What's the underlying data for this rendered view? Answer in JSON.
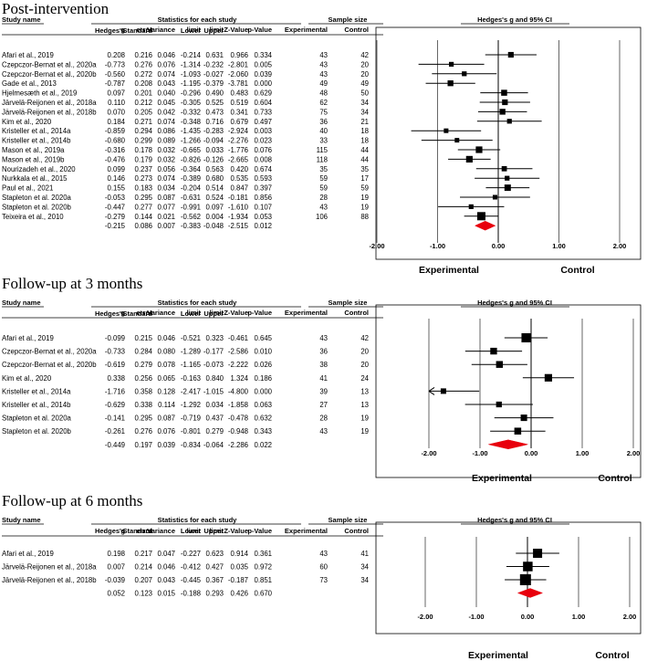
{
  "headers": {
    "study_name": "Study name",
    "stats_group": "Statistics for each study",
    "sample_group": "Sample size",
    "plot_title": "Hedges's g and 95% CI",
    "hedges_1": "Hedges's",
    "hedges_2": "g",
    "se_1": "Standard",
    "se_2": "error",
    "variance": "Variance",
    "lower_1": "Lower",
    "lower_2": "limit",
    "upper_1": "Upper",
    "upper_2": "limit",
    "z": "Z-Value",
    "p": "p-Value",
    "experimental": "Experimental",
    "control": "Control"
  },
  "chart_data": [
    {
      "type": "forest",
      "title": "Post-intervention",
      "xlim": [
        -2,
        2
      ],
      "ticks": [
        "-2.00",
        "-1.00",
        "0.00",
        "1.00",
        "2.00"
      ],
      "tick_values": [
        -2,
        -1,
        0,
        1,
        2
      ],
      "xlabel_left": "Experimental",
      "xlabel_right": "Control",
      "studies": [
        {
          "name": "Afari et al., 2019",
          "g": "0.208",
          "se": "0.216",
          "var": "0.046",
          "lower": "-0.214",
          "upper": "0.631",
          "z": "0.966",
          "p": "0.334",
          "exp": "43",
          "ctrl": "42"
        },
        {
          "name": "Czepczor-Bernat et al., 2020a",
          "g": "-0.773",
          "se": "0.276",
          "var": "0.076",
          "lower": "-1.314",
          "upper": "-0.232",
          "z": "-2.801",
          "p": "0.005",
          "exp": "43",
          "ctrl": "20"
        },
        {
          "name": "Czepczor-Bernat et al., 2020b",
          "g": "-0.560",
          "se": "0.272",
          "var": "0.074",
          "lower": "-1.093",
          "upper": "-0.027",
          "z": "-2.060",
          "p": "0.039",
          "exp": "43",
          "ctrl": "20"
        },
        {
          "name": "Gade et al., 2013",
          "g": "-0.787",
          "se": "0.208",
          "var": "0.043",
          "lower": "-1.195",
          "upper": "-0.379",
          "z": "-3.781",
          "p": "0.000",
          "exp": "49",
          "ctrl": "49"
        },
        {
          "name": "Hjelmesæth et al., 2019",
          "g": "0.097",
          "se": "0.201",
          "var": "0.040",
          "lower": "-0.296",
          "upper": "0.490",
          "z": "0.483",
          "p": "0.629",
          "exp": "48",
          "ctrl": "50"
        },
        {
          "name": "Järvelä-Reijonen et al., 2018a",
          "g": "0.110",
          "se": "0.212",
          "var": "0.045",
          "lower": "-0.305",
          "upper": "0.525",
          "z": "0.519",
          "p": "0.604",
          "exp": "62",
          "ctrl": "34"
        },
        {
          "name": "Järvelä-Reijonen et al., 2018b",
          "g": "0.070",
          "se": "0.205",
          "var": "0.042",
          "lower": "-0.332",
          "upper": "0.473",
          "z": "0.341",
          "p": "0.733",
          "exp": "75",
          "ctrl": "34"
        },
        {
          "name": "Kim et al., 2020",
          "g": "0.184",
          "se": "0.271",
          "var": "0.074",
          "lower": "-0.348",
          "upper": "0.716",
          "z": "0.679",
          "p": "0.497",
          "exp": "36",
          "ctrl": "21"
        },
        {
          "name": "Kristeller et al., 2014a",
          "g": "-0.859",
          "se": "0.294",
          "var": "0.086",
          "lower": "-1.435",
          "upper": "-0.283",
          "z": "-2.924",
          "p": "0.003",
          "exp": "40",
          "ctrl": "18"
        },
        {
          "name": "Kristeller et al., 2014b",
          "g": "-0.680",
          "se": "0.299",
          "var": "0.089",
          "lower": "-1.266",
          "upper": "-0.094",
          "z": "-2.276",
          "p": "0.023",
          "exp": "33",
          "ctrl": "18"
        },
        {
          "name": "Mason et al., 2019a",
          "g": "-0.316",
          "se": "0.178",
          "var": "0.032",
          "lower": "-0.665",
          "upper": "0.033",
          "z": "-1.776",
          "p": "0.076",
          "exp": "115",
          "ctrl": "44"
        },
        {
          "name": "Mason et al., 2019b",
          "g": "-0.476",
          "se": "0.179",
          "var": "0.032",
          "lower": "-0.826",
          "upper": "-0.126",
          "z": "-2.665",
          "p": "0.008",
          "exp": "118",
          "ctrl": "44"
        },
        {
          "name": "Nourizadeh et al., 2020",
          "g": "0.099",
          "se": "0.237",
          "var": "0.056",
          "lower": "-0.364",
          "upper": "0.563",
          "z": "0.420",
          "p": "0.674",
          "exp": "35",
          "ctrl": "35"
        },
        {
          "name": "Nurkkala et al., 2015",
          "g": "0.146",
          "se": "0.273",
          "var": "0.074",
          "lower": "-0.389",
          "upper": "0.680",
          "z": "0.535",
          "p": "0.593",
          "exp": "59",
          "ctrl": "17"
        },
        {
          "name": "Paul et al., 2021",
          "g": "0.155",
          "se": "0.183",
          "var": "0.034",
          "lower": "-0.204",
          "upper": "0.514",
          "z": "0.847",
          "p": "0.397",
          "exp": "59",
          "ctrl": "59"
        },
        {
          "name": "Stapleton et al. 2020a",
          "g": "-0.053",
          "se": "0.295",
          "var": "0.087",
          "lower": "-0.631",
          "upper": "0.524",
          "z": "-0.181",
          "p": "0.856",
          "exp": "28",
          "ctrl": "19"
        },
        {
          "name": "Stapleton et al. 2020b",
          "g": "-0.447",
          "se": "0.277",
          "var": "0.077",
          "lower": "-0.991",
          "upper": "0.097",
          "z": "-1.610",
          "p": "0.107",
          "exp": "43",
          "ctrl": "19"
        },
        {
          "name": "Teixeira et al., 2010",
          "g": "-0.279",
          "se": "0.144",
          "var": "0.021",
          "lower": "-0.562",
          "upper": "0.004",
          "z": "-1.934",
          "p": "0.053",
          "exp": "106",
          "ctrl": "88"
        }
      ],
      "summary": {
        "g": "-0.215",
        "se": "0.086",
        "var": "0.007",
        "lower": "-0.383",
        "upper": "-0.048",
        "z": "-2.515",
        "p": "0.012"
      }
    },
    {
      "type": "forest",
      "title": "Follow-up at 3 months",
      "xlim": [
        -2,
        2
      ],
      "ticks": [
        "-2.00",
        "-1.00",
        "0.00",
        "1.00",
        "2.00"
      ],
      "tick_values": [
        -2,
        -1,
        0,
        1,
        2
      ],
      "xlabel_left": "Experimental",
      "xlabel_right": "Control",
      "studies": [
        {
          "name": "Afari et al., 2019",
          "g": "-0.099",
          "se": "0.215",
          "var": "0.046",
          "lower": "-0.521",
          "upper": "0.323",
          "z": "-0.461",
          "p": "0.645",
          "exp": "43",
          "ctrl": "42"
        },
        {
          "name": "Czepczor-Bernat et al., 2020a",
          "g": "-0.733",
          "se": "0.284",
          "var": "0.080",
          "lower": "-1.289",
          "upper": "-0.177",
          "z": "-2.586",
          "p": "0.010",
          "exp": "36",
          "ctrl": "20"
        },
        {
          "name": "Czepczor-Bernat et al., 2020b",
          "g": "-0.619",
          "se": "0.279",
          "var": "0.078",
          "lower": "-1.165",
          "upper": "-0.073",
          "z": "-2.222",
          "p": "0.026",
          "exp": "38",
          "ctrl": "20"
        },
        {
          "name": "Kim et al., 2020",
          "g": "0.338",
          "se": "0.256",
          "var": "0.065",
          "lower": "-0.163",
          "upper": "0.840",
          "z": "1.324",
          "p": "0.186",
          "exp": "41",
          "ctrl": "24"
        },
        {
          "name": "Kristeller et al., 2014a",
          "g": "-1.716",
          "se": "0.358",
          "var": "0.128",
          "lower": "-2.417",
          "upper": "-1.015",
          "z": "-4.800",
          "p": "0.000",
          "exp": "39",
          "ctrl": "13"
        },
        {
          "name": "Kristeller et al., 2014b",
          "g": "-0.629",
          "se": "0.338",
          "var": "0.114",
          "lower": "-1.292",
          "upper": "0.034",
          "z": "-1.858",
          "p": "0.063",
          "exp": "27",
          "ctrl": "13"
        },
        {
          "name": "Stapleton et al. 2020a",
          "g": "-0.141",
          "se": "0.295",
          "var": "0.087",
          "lower": "-0.719",
          "upper": "0.437",
          "z": "-0.478",
          "p": "0.632",
          "exp": "28",
          "ctrl": "19"
        },
        {
          "name": "Stapleton et al. 2020b",
          "g": "-0.261",
          "se": "0.276",
          "var": "0.076",
          "lower": "-0.801",
          "upper": "0.279",
          "z": "-0.948",
          "p": "0.343",
          "exp": "43",
          "ctrl": "19"
        }
      ],
      "summary": {
        "g": "-0.449",
        "se": "0.197",
        "var": "0.039",
        "lower": "-0.834",
        "upper": "-0.064",
        "z": "-2.286",
        "p": "0.022"
      }
    },
    {
      "type": "forest",
      "title": "Follow-up at 6 months",
      "xlim": [
        -2,
        2
      ],
      "ticks": [
        "-2.00",
        "-1.00",
        "0.00",
        "1.00",
        "2.00"
      ],
      "tick_values": [
        -2,
        -1,
        0,
        1,
        2
      ],
      "xlabel_left": "Experimental",
      "xlabel_right": "Control",
      "studies": [
        {
          "name": "Afari et al., 2019",
          "g": "0.198",
          "se": "0.217",
          "var": "0.047",
          "lower": "-0.227",
          "upper": "0.623",
          "z": "0.914",
          "p": "0.361",
          "exp": "43",
          "ctrl": "41"
        },
        {
          "name": "Järvelä-Reijonen et al., 2018a",
          "g": "0.007",
          "se": "0.214",
          "var": "0.046",
          "lower": "-0.412",
          "upper": "0.427",
          "z": "0.035",
          "p": "0.972",
          "exp": "60",
          "ctrl": "34"
        },
        {
          "name": "Järvelä-Reijonen et al., 2018b",
          "g": "-0.039",
          "se": "0.207",
          "var": "0.043",
          "lower": "-0.445",
          "upper": "0.367",
          "z": "-0.187",
          "p": "0.851",
          "exp": "73",
          "ctrl": "34"
        }
      ],
      "summary": {
        "g": "0.052",
        "se": "0.123",
        "var": "0.015",
        "lower": "-0.188",
        "upper": "0.293",
        "z": "0.426",
        "p": "0.670"
      }
    }
  ]
}
